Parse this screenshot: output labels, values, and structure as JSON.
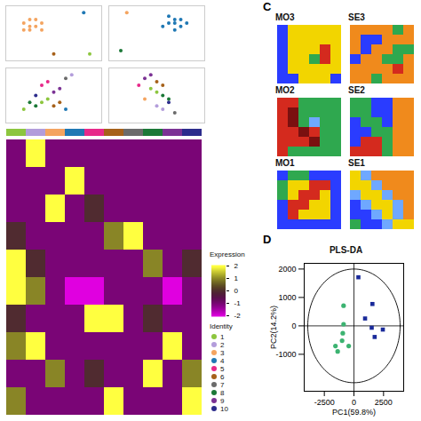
{
  "chart_data": [
    {
      "type": "scatter",
      "tick_labels": false,
      "xlim": [
        -8,
        8
      ],
      "ylim": [
        -8,
        8
      ],
      "points": [
        [
          -5,
          3,
          3
        ],
        [
          -4,
          4,
          3
        ],
        [
          -3,
          2,
          3
        ],
        [
          -4,
          1,
          3
        ],
        [
          -2,
          3,
          3
        ],
        [
          -3,
          4,
          3
        ],
        [
          -5,
          1,
          3
        ],
        [
          -2,
          1,
          3
        ],
        [
          -4,
          2,
          3
        ],
        [
          5,
          6,
          4
        ],
        [
          6,
          -6,
          1
        ],
        [
          0,
          -6,
          6
        ]
      ]
    },
    {
      "type": "scatter",
      "tick_labels": false,
      "xlim": [
        -8,
        8
      ],
      "ylim": [
        -8,
        8
      ],
      "points": [
        [
          2,
          3,
          4
        ],
        [
          3,
          4,
          4
        ],
        [
          4,
          2,
          4
        ],
        [
          3,
          1,
          4
        ],
        [
          1,
          2,
          4
        ],
        [
          2,
          5,
          4
        ],
        [
          4,
          4,
          4
        ],
        [
          3,
          3,
          4
        ],
        [
          5,
          3,
          4
        ],
        [
          -6,
          -5,
          8
        ],
        [
          -5,
          6,
          3
        ]
      ]
    },
    {
      "type": "scatter",
      "tick_labels": false,
      "xlim": [
        -8,
        8
      ],
      "ylim": [
        -8,
        8
      ],
      "points": [
        [
          -4,
          -2,
          8
        ],
        [
          -3,
          -3,
          8
        ],
        [
          -2,
          -2,
          1
        ],
        [
          -1,
          -1,
          1
        ],
        [
          0,
          -3,
          6
        ],
        [
          1,
          -2,
          6
        ],
        [
          2,
          -4,
          4
        ],
        [
          0,
          1,
          9
        ],
        [
          1,
          2,
          9
        ],
        [
          -2,
          3,
          5
        ],
        [
          -1,
          4,
          5
        ],
        [
          2,
          5,
          7
        ],
        [
          3,
          6,
          2
        ],
        [
          -3,
          0,
          10
        ],
        [
          -5,
          -4,
          1
        ]
      ]
    },
    {
      "type": "scatter",
      "tick_labels": false,
      "xlim": [
        -8,
        8
      ],
      "ylim": [
        -8,
        8
      ],
      "points": [
        [
          -2,
          5,
          9
        ],
        [
          -1,
          6,
          9
        ],
        [
          0,
          4,
          6
        ],
        [
          1,
          3,
          6
        ],
        [
          -1,
          2,
          1
        ],
        [
          0,
          1,
          1
        ],
        [
          1,
          0,
          8
        ],
        [
          2,
          -1,
          8
        ],
        [
          0,
          -3,
          2
        ],
        [
          1,
          -4,
          2
        ],
        [
          2,
          -2,
          10
        ],
        [
          -2,
          -1,
          3
        ],
        [
          3,
          -5,
          7
        ],
        [
          -3,
          3,
          5
        ]
      ]
    },
    {
      "type": "heatmap",
      "tick_labels": false,
      "legend": "right",
      "color_label": "Expression",
      "legend_title": "Identity",
      "color_range": [
        -2,
        2
      ],
      "color_ticks": [
        2,
        1,
        0,
        -1,
        -2
      ],
      "identities": [
        1,
        2,
        3,
        4,
        5,
        6,
        7,
        8,
        9,
        10
      ],
      "identity_colors": [
        "#8dc63f",
        "#b39ddb",
        "#f4a460",
        "#1f78b4",
        "#e7298a",
        "#a6611a",
        "#6b6b6b",
        "#1b7837",
        "#7b3294",
        "#2c2c8c"
      ],
      "cells": [
        [
          -1,
          2,
          -1,
          -1,
          -1,
          -1,
          -1,
          -1,
          -1,
          -1
        ],
        [
          -1,
          -1,
          -1,
          2,
          -1,
          -1,
          -1,
          -1,
          -1,
          -1
        ],
        [
          -1,
          -1,
          2,
          -1,
          0,
          -1,
          -1,
          -1,
          -1,
          -1
        ],
        [
          0,
          -1,
          -1,
          -1,
          -1,
          1,
          2,
          -1,
          -1,
          -1
        ],
        [
          2,
          0,
          -1,
          -1,
          -1,
          -1,
          -1,
          1,
          -1,
          0
        ],
        [
          2,
          1,
          -1,
          -2,
          -2,
          -1,
          -1,
          -1,
          -2,
          -1
        ],
        [
          0,
          -1,
          -1,
          -1,
          2,
          2,
          -1,
          0,
          -1,
          -1
        ],
        [
          1,
          2,
          -1,
          -1,
          -1,
          -1,
          -1,
          -1,
          2,
          -1
        ],
        [
          -1,
          -1,
          1,
          -1,
          0,
          -1,
          -1,
          2,
          -1,
          1
        ],
        [
          1,
          -1,
          -1,
          -1,
          -1,
          2,
          -1,
          -1,
          -1,
          2
        ]
      ]
    },
    {
      "type": "spatial",
      "panel": "C",
      "tick_labels": false,
      "colors": [
        "#f2d500",
        "#2a3cff",
        "#d42a1e",
        "#2fa84f",
        "#f08a1c",
        "#6fa8ff",
        "#7a1010",
        "#8a2be2"
      ],
      "panels": [
        {
          "title": "MO3",
          "cells": [
            [
              1,
              0,
              0,
              0,
              0,
              0
            ],
            [
              1,
              0,
              0,
              0,
              0,
              0
            ],
            [
              1,
              0,
              0,
              0,
              2,
              0
            ],
            [
              1,
              0,
              0,
              3,
              2,
              0
            ],
            [
              1,
              0,
              0,
              0,
              0,
              0
            ],
            [
              1,
              1,
              0,
              0,
              0,
              1
            ]
          ]
        },
        {
          "title": "SE3",
          "cells": [
            [
              4,
              4,
              4,
              4,
              3,
              4
            ],
            [
              4,
              1,
              1,
              4,
              4,
              4
            ],
            [
              4,
              1,
              4,
              4,
              3,
              3
            ],
            [
              1,
              4,
              4,
              3,
              3,
              4
            ],
            [
              4,
              4,
              4,
              4,
              2,
              4
            ],
            [
              4,
              4,
              3,
              4,
              4,
              4
            ]
          ]
        },
        {
          "title": "MO2",
          "cells": [
            [
              2,
              2,
              3,
              3,
              3,
              3
            ],
            [
              2,
              6,
              3,
              3,
              3,
              3
            ],
            [
              2,
              6,
              3,
              5,
              3,
              3
            ],
            [
              2,
              2,
              6,
              2,
              3,
              3
            ],
            [
              2,
              2,
              2,
              6,
              3,
              3
            ],
            [
              2,
              3,
              3,
              3,
              3,
              3
            ]
          ]
        },
        {
          "title": "SE2",
          "cells": [
            [
              3,
              3,
              1,
              1,
              4,
              4
            ],
            [
              3,
              3,
              1,
              1,
              4,
              4
            ],
            [
              1,
              3,
              3,
              1,
              4,
              4
            ],
            [
              1,
              1,
              3,
              3,
              4,
              4
            ],
            [
              1,
              2,
              2,
              3,
              4,
              4
            ],
            [
              2,
              2,
              2,
              3,
              4,
              4
            ]
          ]
        },
        {
          "title": "MO1",
          "cells": [
            [
              1,
              3,
              3,
              1,
              1,
              1
            ],
            [
              3,
              0,
              0,
              2,
              2,
              1
            ],
            [
              3,
              0,
              2,
              2,
              0,
              1
            ],
            [
              1,
              2,
              2,
              0,
              0,
              1
            ],
            [
              1,
              2,
              0,
              0,
              0,
              1
            ],
            [
              1,
              1,
              1,
              1,
              1,
              1
            ]
          ]
        },
        {
          "title": "SE1",
          "cells": [
            [
              0,
              5,
              4,
              4,
              4,
              4
            ],
            [
              0,
              0,
              5,
              4,
              4,
              4
            ],
            [
              5,
              0,
              0,
              5,
              4,
              4
            ],
            [
              1,
              5,
              0,
              0,
              5,
              4
            ],
            [
              1,
              1,
              5,
              0,
              5,
              4
            ],
            [
              3,
              1,
              1,
              5,
              0,
              0
            ]
          ]
        }
      ]
    },
    {
      "type": "scatter",
      "panel": "D",
      "title": "PLS-DA",
      "x_label": "PC1(59.8%)",
      "y_label": "PC2(14.2%)",
      "xlim": [
        -4200,
        4200
      ],
      "ylim": [
        -2300,
        2200
      ],
      "xticks": [
        -2500,
        0,
        2500
      ],
      "yticks": [
        -1000,
        0,
        1000,
        2000
      ],
      "ellipse": {
        "cx": 0,
        "cy": 0,
        "rx": 3900,
        "ry": 2000
      },
      "series": [
        {
          "color": "#3cb371",
          "marker": "circle",
          "x": [
            -875,
            -875,
            -940,
            -1000,
            -440,
            -1560,
            -1375
          ],
          "y": [
            710,
            60,
            -260,
            -520,
            -710,
            -710,
            -900
          ]
        },
        {
          "color": "#1a2a9a",
          "marker": "square",
          "x": [
            375,
            1560,
            940,
            1500,
            1750,
            2440
          ],
          "y": [
            1710,
            770,
            260,
            -65,
            -390,
            -130
          ]
        }
      ]
    }
  ]
}
